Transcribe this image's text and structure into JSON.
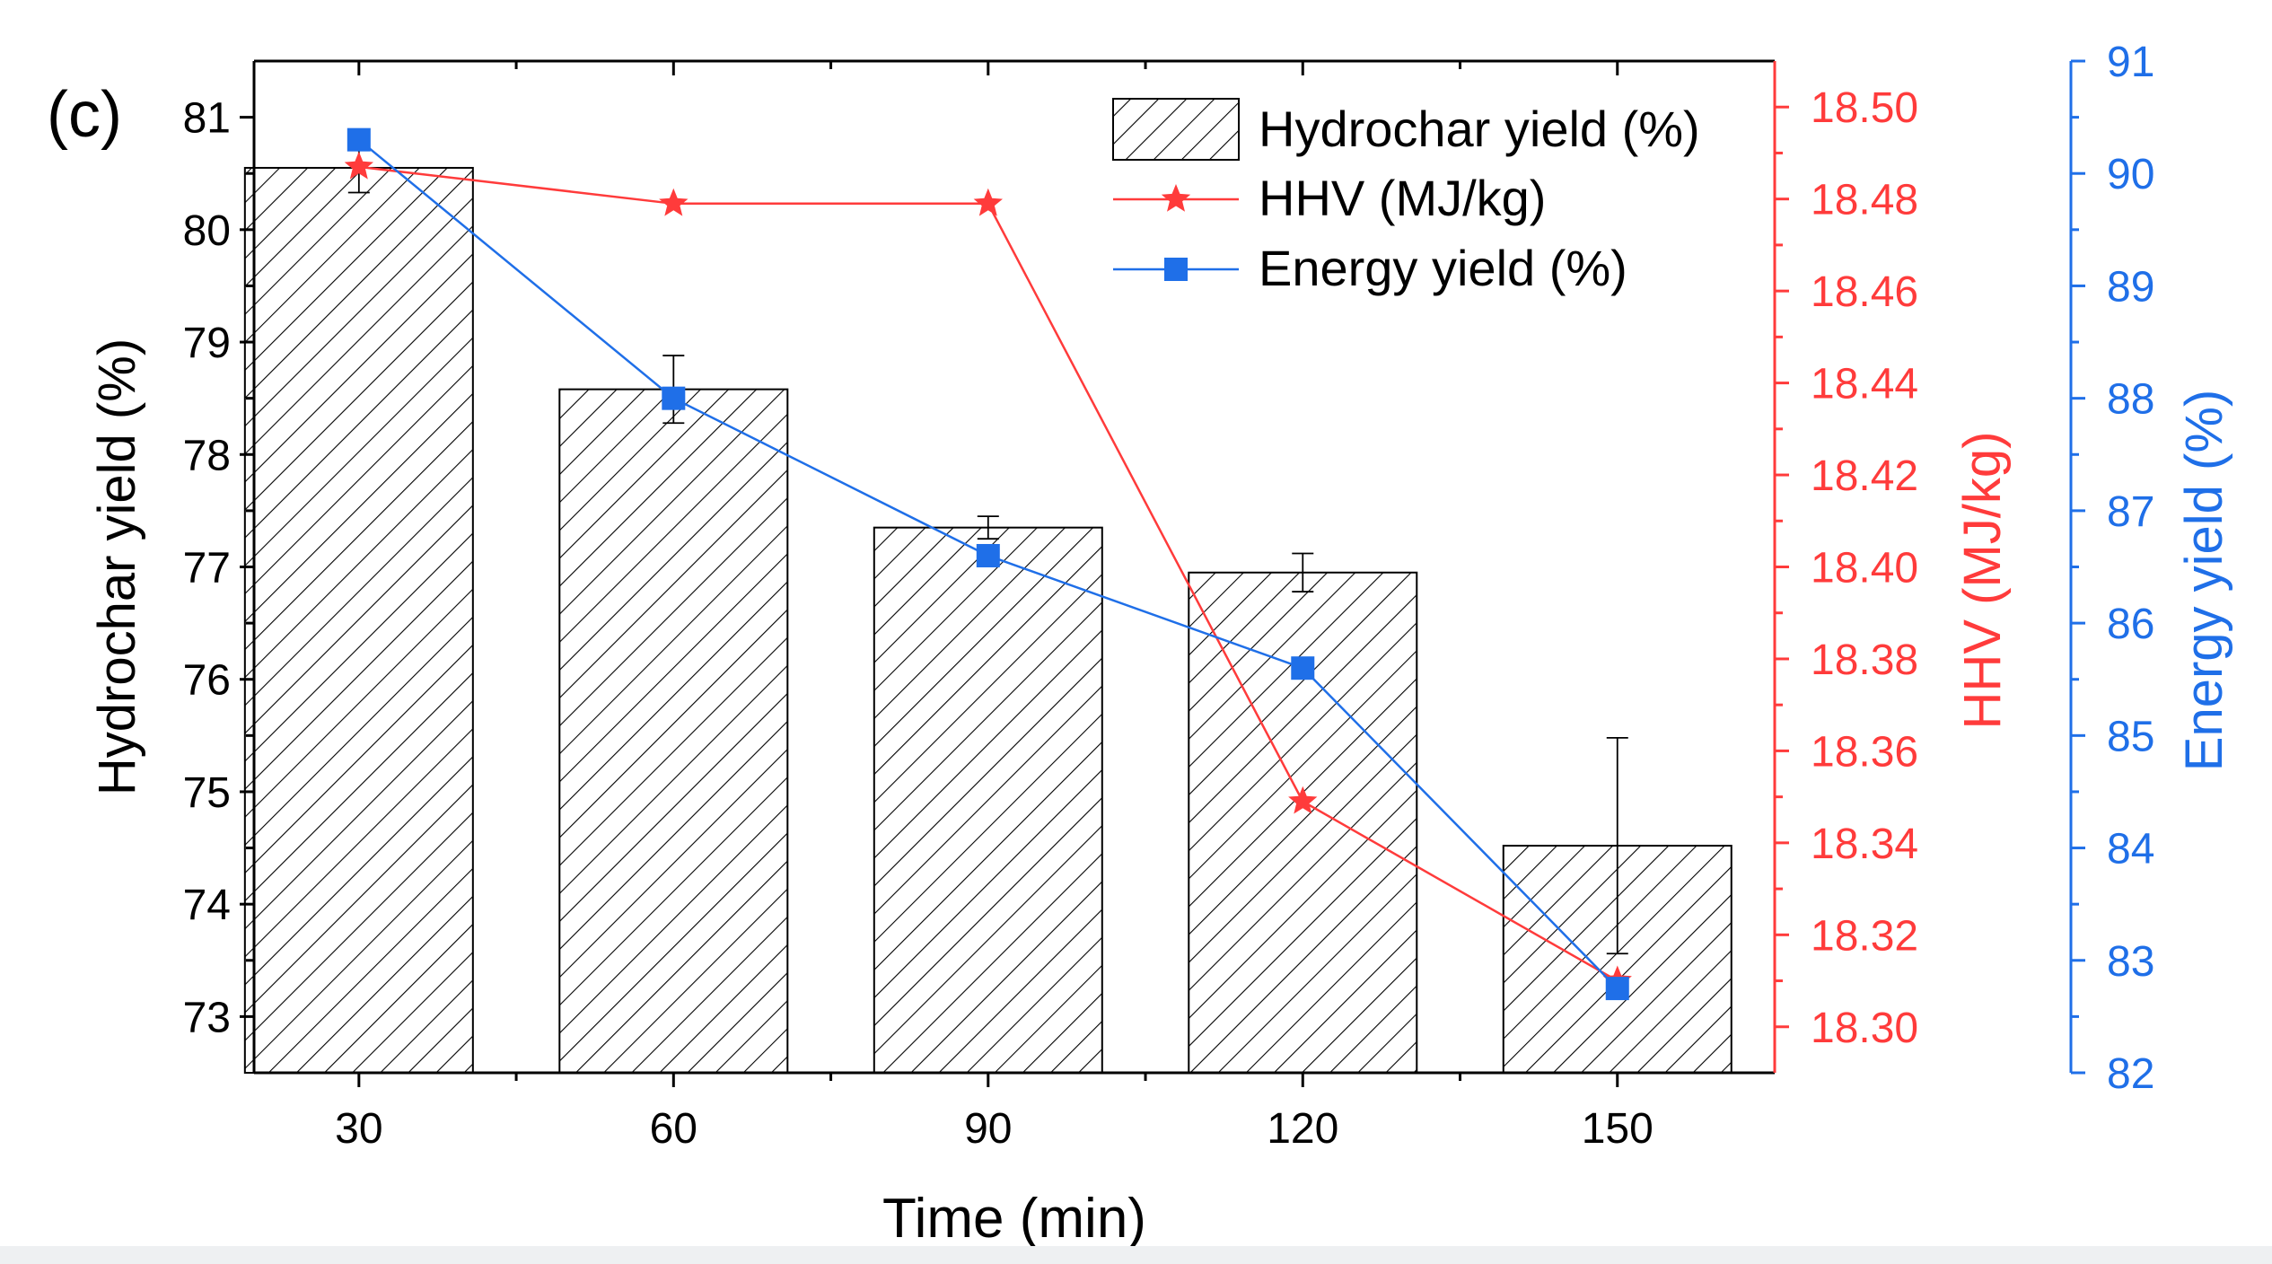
{
  "chart_data": {
    "type": "bar-line-combo",
    "panel_label": "(c)",
    "categories": [
      "30",
      "60",
      "90",
      "120",
      "150"
    ],
    "x": [
      30,
      60,
      90,
      120,
      150
    ],
    "xlabel": "Time (min)",
    "axes": {
      "left": {
        "label": "Hydrochar yield (%)",
        "ylim": [
          72.5,
          81.5
        ],
        "ticks": [
          73,
          74,
          75,
          76,
          77,
          78,
          79,
          80,
          81
        ],
        "color": "#000000"
      },
      "right1": {
        "label": "HHV (MJ/kg)",
        "ylim": [
          18.29,
          18.51
        ],
        "ticks": [
          "18.30",
          "18.32",
          "18.34",
          "18.36",
          "18.38",
          "18.40",
          "18.42",
          "18.44",
          "18.46",
          "18.48",
          "18.50"
        ],
        "color": "#ff3b3b"
      },
      "right2": {
        "label": "Energy yield (%)",
        "ylim": [
          82,
          91
        ],
        "ticks": [
          82,
          83,
          84,
          85,
          86,
          87,
          88,
          89,
          90,
          91
        ],
        "color": "#1f6fe8"
      }
    },
    "series": [
      {
        "name": "Hydrochar yield (%)",
        "type": "bar",
        "axis": "left",
        "pattern": "hatched",
        "values": [
          80.55,
          78.58,
          77.35,
          76.95,
          74.52
        ],
        "errors": [
          0.22,
          0.3,
          0.1,
          0.17,
          0.96
        ]
      },
      {
        "name": "HHV (MJ/kg)",
        "type": "line",
        "axis": "right1",
        "marker": "star",
        "color": "#ff3b3b",
        "values": [
          18.487,
          18.479,
          18.479,
          18.349,
          18.31
        ]
      },
      {
        "name": "Energy yield (%)",
        "type": "line",
        "axis": "right2",
        "marker": "square",
        "color": "#1f6fe8",
        "values": [
          90.3,
          88.0,
          86.6,
          85.6,
          82.75
        ]
      }
    ],
    "legend": {
      "position": "top-right",
      "entries": [
        "Hydrochar yield (%)",
        "HHV (MJ/kg)",
        "Energy yield (%)"
      ]
    }
  }
}
